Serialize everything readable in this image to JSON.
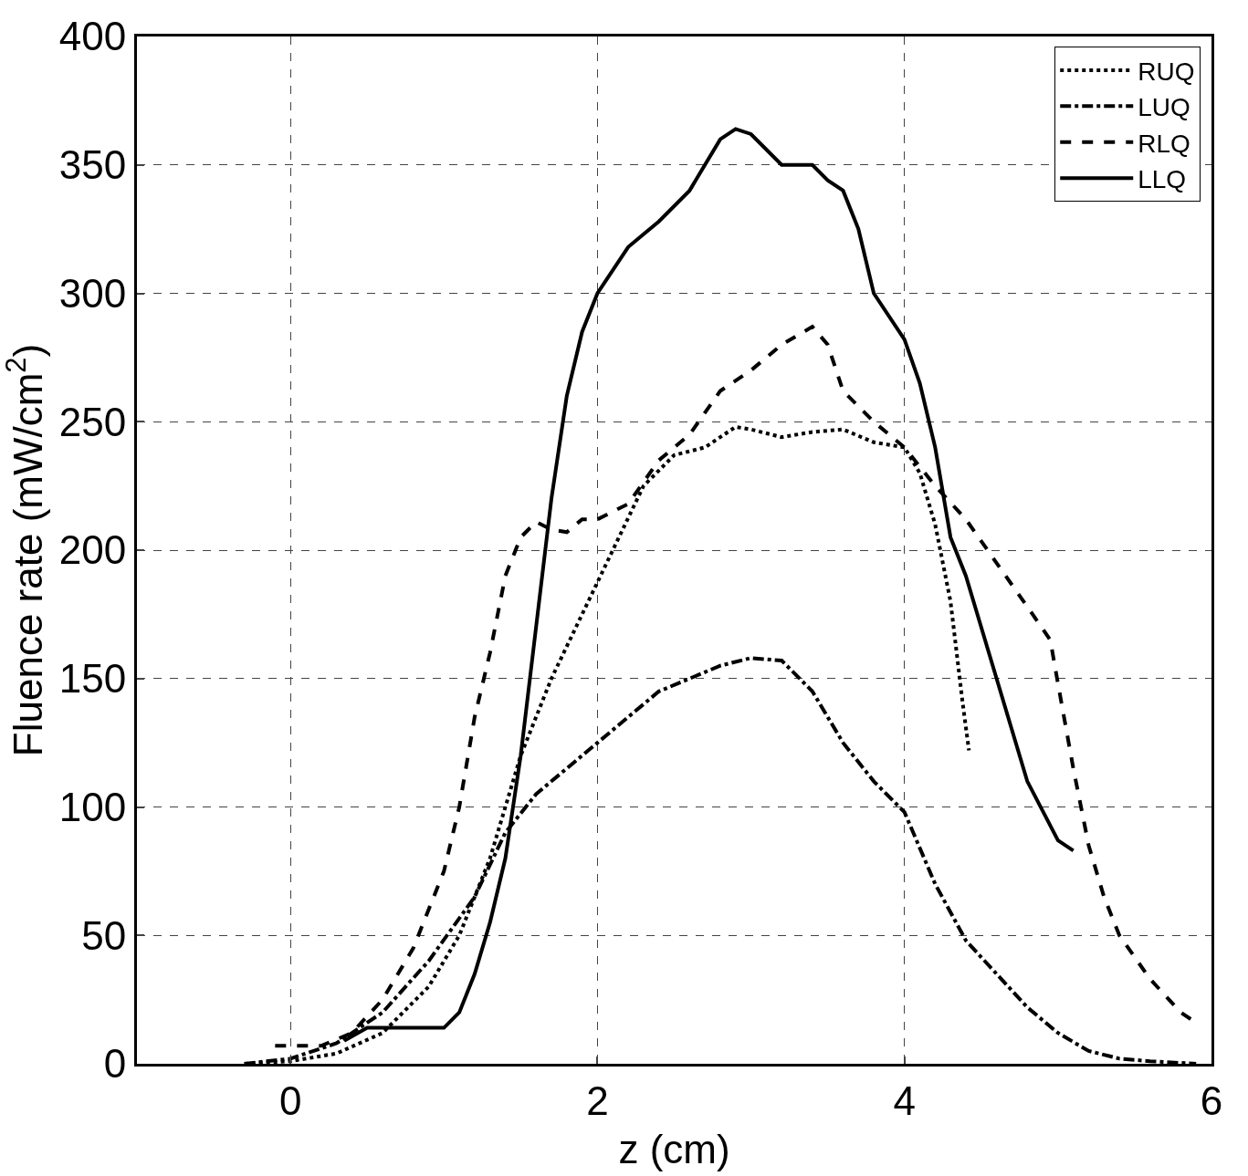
{
  "chart_data": {
    "type": "line",
    "xlabel": "z (cm)",
    "ylabel": "Fluence rate (mW/cm$^{2}$)",
    "xlim": [
      -1,
      6
    ],
    "xticks": [
      0,
      2,
      4,
      6
    ],
    "ylim": [
      0,
      400
    ],
    "yticks": [
      0,
      50,
      100,
      150,
      200,
      250,
      300,
      350,
      400
    ],
    "grid": true,
    "legend": "top right",
    "series": [
      {
        "name": "RUQ",
        "color": "#000000",
        "line_style": "dotted",
        "x": [
          -0.3,
          0,
          0.3,
          0.6,
          0.9,
          1.1,
          1.3,
          1.5,
          1.7,
          1.9,
          2.1,
          2.3,
          2.5,
          2.7,
          2.9,
          3.0,
          3.2,
          3.4,
          3.6,
          3.8,
          4.0,
          4.1,
          4.2,
          4.3,
          4.38,
          4.42
        ],
        "values": [
          0,
          1,
          4,
          12,
          30,
          50,
          80,
          120,
          150,
          175,
          200,
          225,
          237,
          240,
          248,
          247,
          244,
          246,
          247,
          242,
          240,
          230,
          210,
          180,
          140,
          122
        ]
      },
      {
        "name": "LUQ",
        "color": "#000000",
        "line_style": "dashdot",
        "x": [
          -0.3,
          0,
          0.3,
          0.6,
          0.9,
          1.2,
          1.4,
          1.6,
          1.8,
          2.0,
          2.2,
          2.4,
          2.6,
          2.8,
          3.0,
          3.2,
          3.4,
          3.6,
          3.8,
          4.0,
          4.2,
          4.4,
          4.6,
          4.8,
          5.0,
          5.2,
          5.4,
          5.6,
          5.9
        ],
        "values": [
          0,
          2,
          8,
          20,
          40,
          65,
          90,
          105,
          115,
          125,
          135,
          145,
          150,
          155,
          158,
          157,
          145,
          125,
          110,
          98,
          70,
          48,
          35,
          22,
          12,
          5,
          2,
          1,
          0
        ]
      },
      {
        "name": "RLQ",
        "color": "#000000",
        "line_style": "dashed",
        "x": [
          -0.1,
          0.2,
          0.4,
          0.6,
          0.8,
          1.0,
          1.1,
          1.2,
          1.3,
          1.4,
          1.5,
          1.6,
          1.7,
          1.8,
          1.9,
          2.0,
          2.2,
          2.4,
          2.6,
          2.8,
          3.0,
          3.2,
          3.4,
          3.5,
          3.6,
          3.8,
          4.0,
          4.2,
          4.4,
          4.6,
          4.8,
          4.95,
          5.0,
          5.1,
          5.2,
          5.3,
          5.4,
          5.6,
          5.8,
          5.9
        ],
        "values": [
          7,
          7,
          12,
          25,
          45,
          75,
          100,
          135,
          160,
          190,
          205,
          211,
          208,
          207,
          212,
          212,
          218,
          235,
          245,
          262,
          270,
          280,
          287,
          280,
          262,
          250,
          240,
          225,
          212,
          195,
          178,
          165,
          148,
          115,
          85,
          65,
          50,
          33,
          20,
          16
        ]
      },
      {
        "name": "LLQ",
        "color": "#000000",
        "line_style": "solid",
        "x": [
          0.35,
          0.5,
          1.0,
          1.1,
          1.2,
          1.3,
          1.4,
          1.5,
          1.6,
          1.7,
          1.8,
          1.9,
          2.0,
          2.2,
          2.4,
          2.6,
          2.8,
          2.9,
          3.0,
          3.2,
          3.4,
          3.5,
          3.6,
          3.7,
          3.8,
          4.0,
          4.1,
          4.2,
          4.3,
          4.4,
          4.6,
          4.8,
          5.0,
          5.1
        ],
        "values": [
          9,
          14,
          14,
          20,
          35,
          55,
          80,
          120,
          170,
          220,
          260,
          285,
          300,
          318,
          328,
          340,
          360,
          364,
          362,
          350,
          350,
          344,
          340,
          325,
          300,
          282,
          265,
          240,
          205,
          190,
          150,
          110,
          87,
          83
        ]
      }
    ]
  }
}
